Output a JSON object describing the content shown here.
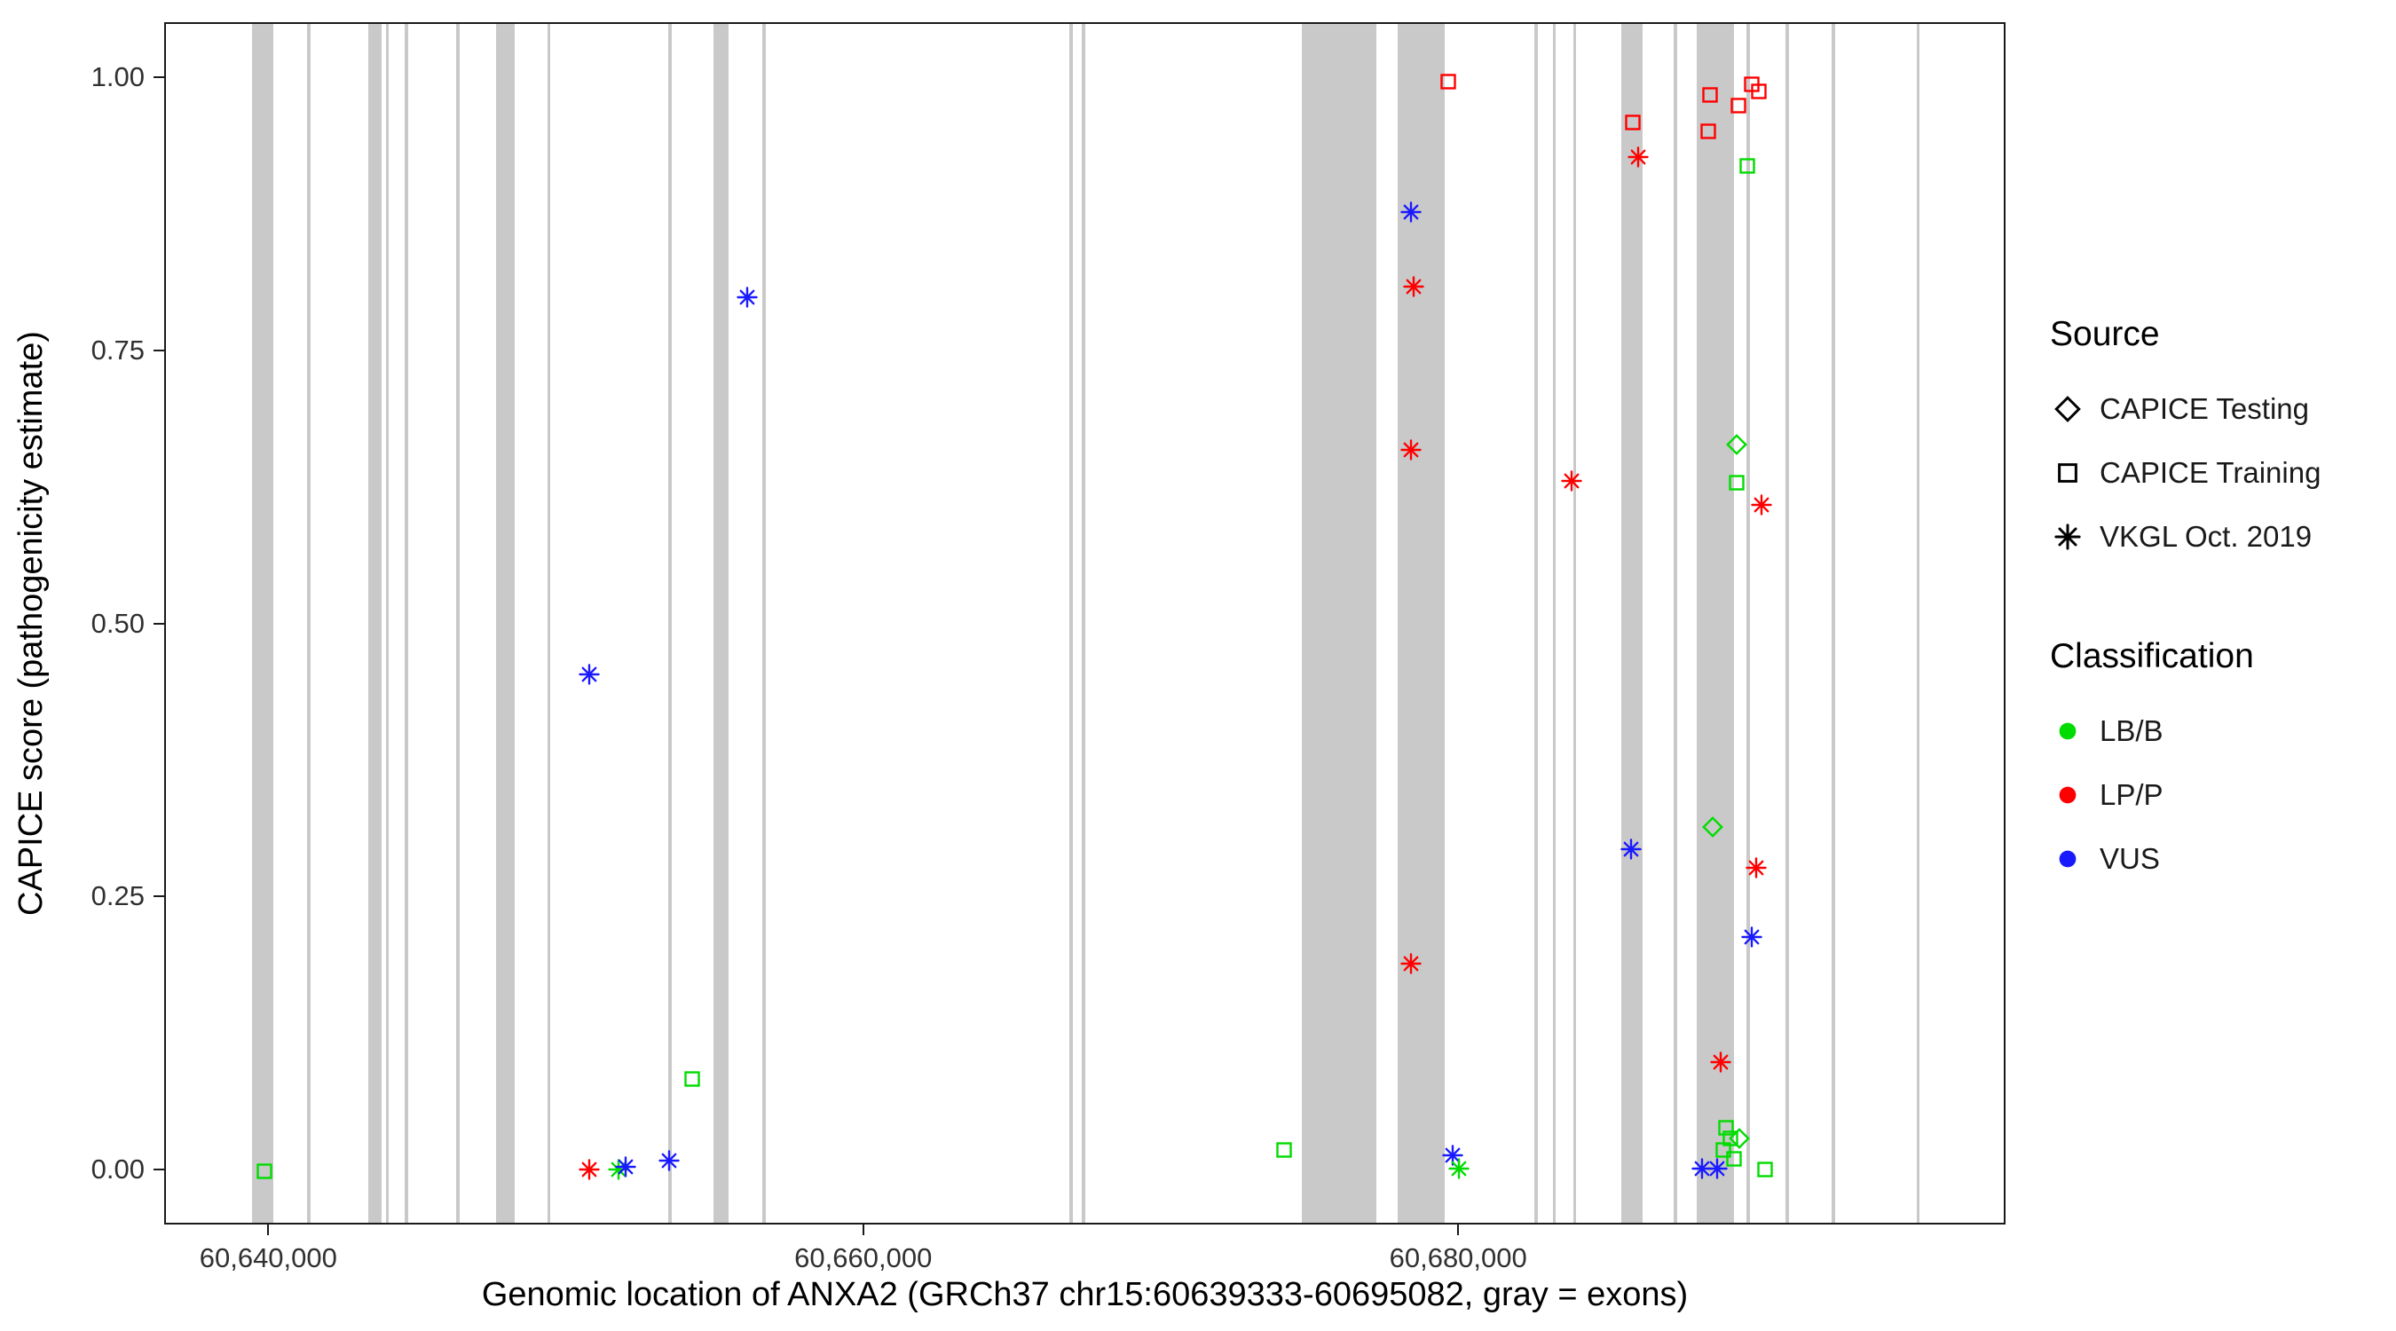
{
  "chart_data": {
    "type": "scatter",
    "title": "",
    "xlabel": "Genomic location of ANXA2 (GRCh37 chr15:60639333-60695082, gray = exons)",
    "ylabel": "CAPICE score (pathogenicity estimate)",
    "xlim": [
      60636500,
      60698400
    ],
    "ylim": [
      -0.05,
      1.05
    ],
    "grid": false,
    "legend_position": "right",
    "x_ticks": [
      {
        "value": 60640000,
        "label": "60,640,000"
      },
      {
        "value": 60660000,
        "label": "60,660,000"
      },
      {
        "value": 60680000,
        "label": "60,680,000"
      }
    ],
    "y_ticks": [
      {
        "value": 0.0,
        "label": "0.00"
      },
      {
        "value": 0.25,
        "label": "0.25"
      },
      {
        "value": 0.5,
        "label": "0.50"
      },
      {
        "value": 0.75,
        "label": "0.75"
      },
      {
        "value": 1.0,
        "label": "1.00"
      }
    ],
    "colors": {
      "LB/B": "#00DC00",
      "LP/P": "#FF0000",
      "VUS": "#1A1AFF",
      "exon_fill": "#C9C9C9"
    },
    "shape_by_source": {
      "CAPICE Testing": "diamond",
      "CAPICE Training": "square",
      "VKGL Oct. 2019": "asterisk"
    },
    "legend": {
      "source": {
        "title": "Source",
        "items": [
          {
            "label": "CAPICE Testing",
            "shape": "diamond"
          },
          {
            "label": "CAPICE Training",
            "shape": "square"
          },
          {
            "label": "VKGL Oct. 2019",
            "shape": "asterisk"
          }
        ]
      },
      "classification": {
        "title": "Classification",
        "items": [
          {
            "label": "LB/B",
            "color_key": "LB/B"
          },
          {
            "label": "LP/P",
            "color_key": "LP/P"
          },
          {
            "label": "VUS",
            "color_key": "VUS"
          }
        ]
      }
    },
    "exons": [
      [
        60639400,
        60640100
      ],
      [
        60641250,
        60641350
      ],
      [
        60643300,
        60643750
      ],
      [
        60643900,
        60644000
      ],
      [
        60644530,
        60644640
      ],
      [
        60646250,
        60646360
      ],
      [
        60647600,
        60648230
      ],
      [
        60649320,
        60649430
      ],
      [
        60653380,
        60653490
      ],
      [
        60654900,
        60655420
      ],
      [
        60656560,
        60656670
      ],
      [
        60666870,
        60666980
      ],
      [
        60667290,
        60667400
      ],
      [
        60674690,
        60677190
      ],
      [
        60677920,
        60679480
      ],
      [
        60682500,
        60682610
      ],
      [
        60683120,
        60683230
      ],
      [
        60683800,
        60683910
      ],
      [
        60685420,
        60686150
      ],
      [
        60687190,
        60687300
      ],
      [
        60687970,
        60689220
      ],
      [
        60689640,
        60689750
      ],
      [
        60690940,
        60691050
      ],
      [
        60692500,
        60692610
      ],
      [
        60695350,
        60695460
      ]
    ],
    "points": [
      {
        "source": "CAPICE Training",
        "classification": "LB/B",
        "x": 60639800,
        "y": 0.0
      },
      {
        "source": "CAPICE Training",
        "classification": "LB/B",
        "x": 60654200,
        "y": 0.085
      },
      {
        "source": "CAPICE Training",
        "classification": "LB/B",
        "x": 60674100,
        "y": 0.02
      },
      {
        "source": "CAPICE Training",
        "classification": "LP/P",
        "x": 60679600,
        "y": 0.997
      },
      {
        "source": "CAPICE Training",
        "classification": "LP/P",
        "x": 60685800,
        "y": 0.96
      },
      {
        "source": "CAPICE Training",
        "classification": "LB/B",
        "x": 60689300,
        "y": 0.63
      },
      {
        "source": "CAPICE Training",
        "classification": "LB/B",
        "x": 60689650,
        "y": 0.92
      },
      {
        "source": "CAPICE Training",
        "classification": "LP/P",
        "x": 60688400,
        "y": 0.985
      },
      {
        "source": "CAPICE Training",
        "classification": "LP/P",
        "x": 60688350,
        "y": 0.952
      },
      {
        "source": "CAPICE Training",
        "classification": "LP/P",
        "x": 60689350,
        "y": 0.975
      },
      {
        "source": "CAPICE Training",
        "classification": "LP/P",
        "x": 60689800,
        "y": 0.995
      },
      {
        "source": "CAPICE Training",
        "classification": "LP/P",
        "x": 60690050,
        "y": 0.988
      },
      {
        "source": "CAPICE Training",
        "classification": "LB/B",
        "x": 60688950,
        "y": 0.04
      },
      {
        "source": "CAPICE Training",
        "classification": "LB/B",
        "x": 60689100,
        "y": 0.03
      },
      {
        "source": "CAPICE Training",
        "classification": "LB/B",
        "x": 60688850,
        "y": 0.02
      },
      {
        "source": "CAPICE Training",
        "classification": "LB/B",
        "x": 60689200,
        "y": 0.012
      },
      {
        "source": "CAPICE Training",
        "classification": "LB/B",
        "x": 60690250,
        "y": 0.002
      },
      {
        "source": "CAPICE Testing",
        "classification": "LB/B",
        "x": 60689300,
        "y": 0.665
      },
      {
        "source": "CAPICE Testing",
        "classification": "LB/B",
        "x": 60688500,
        "y": 0.315
      },
      {
        "source": "CAPICE Testing",
        "classification": "LB/B",
        "x": 60689400,
        "y": 0.03
      },
      {
        "source": "VKGL Oct. 2019",
        "classification": "LP/P",
        "x": 60650730,
        "y": 0.002
      },
      {
        "source": "VKGL Oct. 2019",
        "classification": "LB/B",
        "x": 60651700,
        "y": 0.002
      },
      {
        "source": "VKGL Oct. 2019",
        "classification": "VUS",
        "x": 60651950,
        "y": 0.004
      },
      {
        "source": "VKGL Oct. 2019",
        "classification": "VUS",
        "x": 60653400,
        "y": 0.01
      },
      {
        "source": "VKGL Oct. 2019",
        "classification": "VUS",
        "x": 60650730,
        "y": 0.455
      },
      {
        "source": "VKGL Oct. 2019",
        "classification": "VUS",
        "x": 60656050,
        "y": 0.8
      },
      {
        "source": "VKGL Oct. 2019",
        "classification": "VUS",
        "x": 60678350,
        "y": 0.878
      },
      {
        "source": "VKGL Oct. 2019",
        "classification": "LP/P",
        "x": 60678450,
        "y": 0.81
      },
      {
        "source": "VKGL Oct. 2019",
        "classification": "LP/P",
        "x": 60678350,
        "y": 0.66
      },
      {
        "source": "VKGL Oct. 2019",
        "classification": "LP/P",
        "x": 60678350,
        "y": 0.19
      },
      {
        "source": "VKGL Oct. 2019",
        "classification": "VUS",
        "x": 60679750,
        "y": 0.015
      },
      {
        "source": "VKGL Oct. 2019",
        "classification": "LB/B",
        "x": 60679950,
        "y": 0.003
      },
      {
        "source": "VKGL Oct. 2019",
        "classification": "LP/P",
        "x": 60683750,
        "y": 0.632
      },
      {
        "source": "VKGL Oct. 2019",
        "classification": "LP/P",
        "x": 60686000,
        "y": 0.928
      },
      {
        "source": "VKGL Oct. 2019",
        "classification": "VUS",
        "x": 60685750,
        "y": 0.295
      },
      {
        "source": "VKGL Oct. 2019",
        "classification": "LP/P",
        "x": 60690150,
        "y": 0.61
      },
      {
        "source": "VKGL Oct. 2019",
        "classification": "LP/P",
        "x": 60689950,
        "y": 0.278
      },
      {
        "source": "VKGL Oct. 2019",
        "classification": "VUS",
        "x": 60689800,
        "y": 0.215
      },
      {
        "source": "VKGL Oct. 2019",
        "classification": "LP/P",
        "x": 60688750,
        "y": 0.1
      },
      {
        "source": "VKGL Oct. 2019",
        "classification": "VUS",
        "x": 60688150,
        "y": 0.003
      },
      {
        "source": "VKGL Oct. 2019",
        "classification": "VUS",
        "x": 60688650,
        "y": 0.003
      }
    ]
  }
}
